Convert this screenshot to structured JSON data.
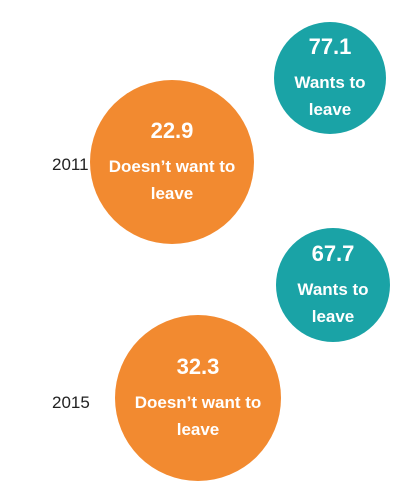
{
  "chart_data": {
    "type": "bubble",
    "categories": [
      "2011",
      "2015"
    ],
    "series": [
      {
        "name": "Wants to leave",
        "color": "#1aa3a6",
        "values": [
          77.1,
          67.7
        ]
      },
      {
        "name": "Doesn’t want to leave",
        "color": "#f28a30",
        "values": [
          22.9,
          32.3
        ]
      }
    ]
  }
}
